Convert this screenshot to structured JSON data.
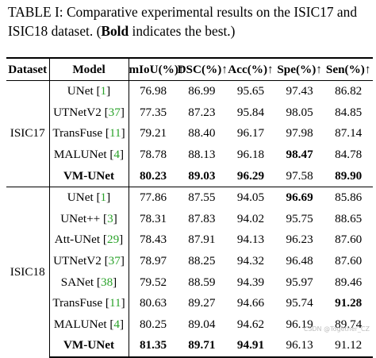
{
  "caption": {
    "part1": "TABLE I: Comparative experimental results on the ISIC17 and ISIC18 dataset. (",
    "bold": "Bold",
    "part2": " indicates the best.)"
  },
  "headers": [
    "Dataset",
    "Model",
    "mIoU(%)↑",
    "DSC(%)↑",
    "Acc(%)↑",
    "Spe(%)↑",
    "Sen(%)↑"
  ],
  "groups": [
    {
      "dataset": "ISIC17",
      "rows": [
        {
          "model": "UNet",
          "ref": "1",
          "bold_model": false,
          "values": [
            "76.98",
            "86.99",
            "95.65",
            "97.43",
            "86.82"
          ],
          "bold": [
            false,
            false,
            false,
            false,
            false
          ]
        },
        {
          "model": "UTNetV2",
          "ref": "37",
          "bold_model": false,
          "values": [
            "77.35",
            "87.23",
            "95.84",
            "98.05",
            "84.85"
          ],
          "bold": [
            false,
            false,
            false,
            false,
            false
          ]
        },
        {
          "model": "TransFuse",
          "ref": "11",
          "bold_model": false,
          "values": [
            "79.21",
            "88.40",
            "96.17",
            "97.98",
            "87.14"
          ],
          "bold": [
            false,
            false,
            false,
            false,
            false
          ]
        },
        {
          "model": "MALUNet",
          "ref": "4",
          "bold_model": false,
          "values": [
            "78.78",
            "88.13",
            "96.18",
            "98.47",
            "84.78"
          ],
          "bold": [
            false,
            false,
            false,
            true,
            false
          ]
        },
        {
          "model": "VM-UNet",
          "ref": "",
          "bold_model": true,
          "values": [
            "80.23",
            "89.03",
            "96.29",
            "97.58",
            "89.90"
          ],
          "bold": [
            true,
            true,
            true,
            false,
            true
          ]
        }
      ]
    },
    {
      "dataset": "ISIC18",
      "rows": [
        {
          "model": "UNet",
          "ref": "1",
          "bold_model": false,
          "values": [
            "77.86",
            "87.55",
            "94.05",
            "96.69",
            "85.86"
          ],
          "bold": [
            false,
            false,
            false,
            true,
            false
          ]
        },
        {
          "model": "UNet++",
          "ref": "3",
          "bold_model": false,
          "values": [
            "78.31",
            "87.83",
            "94.02",
            "95.75",
            "88.65"
          ],
          "bold": [
            false,
            false,
            false,
            false,
            false
          ]
        },
        {
          "model": "Att-UNet",
          "ref": "29",
          "bold_model": false,
          "values": [
            "78.43",
            "87.91",
            "94.13",
            "96.23",
            "87.60"
          ],
          "bold": [
            false,
            false,
            false,
            false,
            false
          ]
        },
        {
          "model": "UTNetV2",
          "ref": "37",
          "bold_model": false,
          "values": [
            "78.97",
            "88.25",
            "94.32",
            "96.48",
            "87.60"
          ],
          "bold": [
            false,
            false,
            false,
            false,
            false
          ]
        },
        {
          "model": "SANet",
          "ref": "38",
          "bold_model": false,
          "values": [
            "79.52",
            "88.59",
            "94.39",
            "95.97",
            "89.46"
          ],
          "bold": [
            false,
            false,
            false,
            false,
            false
          ]
        },
        {
          "model": "TransFuse",
          "ref": "11",
          "bold_model": false,
          "values": [
            "80.63",
            "89.27",
            "94.66",
            "95.74",
            "91.28"
          ],
          "bold": [
            false,
            false,
            false,
            false,
            true
          ]
        },
        {
          "model": "MALUNet",
          "ref": "4",
          "bold_model": false,
          "values": [
            "80.25",
            "89.04",
            "94.62",
            "96.19",
            "89.74"
          ],
          "bold": [
            false,
            false,
            false,
            false,
            false
          ]
        },
        {
          "model": "VM-UNet",
          "ref": "",
          "bold_model": true,
          "values": [
            "81.35",
            "89.71",
            "94.91",
            "96.13",
            "91.12"
          ],
          "bold": [
            true,
            true,
            true,
            false,
            false
          ]
        }
      ]
    }
  ],
  "watermark": "CSDN @Together_CZ"
}
